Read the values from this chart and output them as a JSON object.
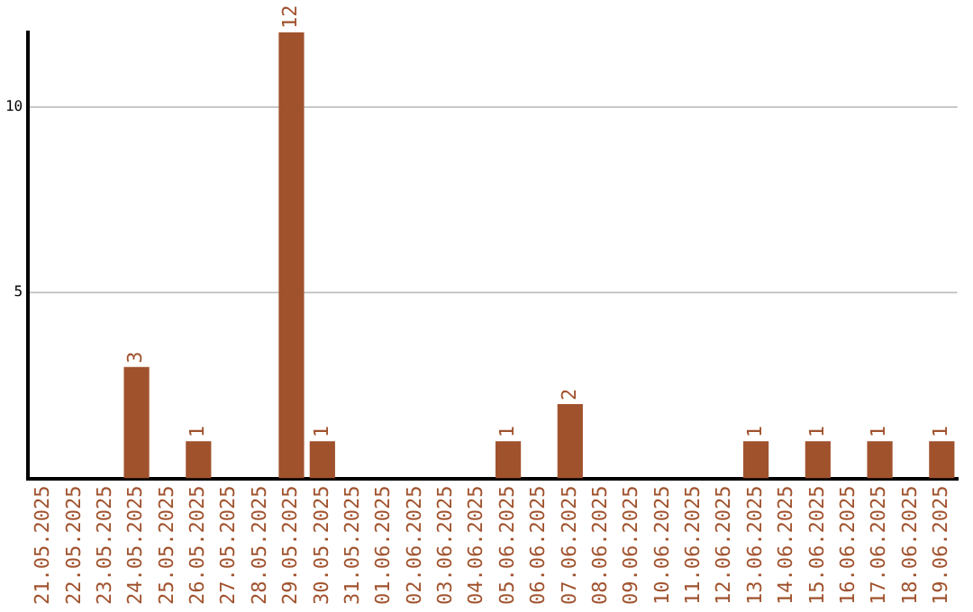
{
  "chart_data": {
    "type": "bar",
    "categories": [
      "21.05.2025",
      "22.05.2025",
      "23.05.2025",
      "24.05.2025",
      "25.05.2025",
      "26.05.2025",
      "27.05.2025",
      "28.05.2025",
      "29.05.2025",
      "30.05.2025",
      "31.05.2025",
      "01.06.2025",
      "02.06.2025",
      "03.06.2025",
      "04.06.2025",
      "05.06.2025",
      "06.06.2025",
      "07.06.2025",
      "08.06.2025",
      "09.06.2025",
      "10.06.2025",
      "11.06.2025",
      "12.06.2025",
      "13.06.2025",
      "14.06.2025",
      "15.06.2025",
      "16.06.2025",
      "17.06.2025",
      "18.06.2025",
      "19.06.2025"
    ],
    "values": [
      0,
      0,
      0,
      3,
      0,
      1,
      0,
      0,
      12,
      1,
      0,
      0,
      0,
      0,
      0,
      1,
      0,
      2,
      0,
      0,
      0,
      0,
      0,
      1,
      0,
      1,
      0,
      1,
      0,
      1
    ],
    "value_labels": [
      null,
      null,
      null,
      "3",
      null,
      "1",
      null,
      null,
      "12",
      "1",
      null,
      null,
      null,
      null,
      null,
      "1",
      null,
      "2",
      null,
      null,
      null,
      null,
      null,
      "1",
      null,
      "1",
      null,
      "1",
      null,
      "1"
    ],
    "color": "#a0522d",
    "ylim": [
      0,
      12
    ],
    "yticks": [
      5,
      10
    ],
    "grid": "y",
    "legend": false
  }
}
